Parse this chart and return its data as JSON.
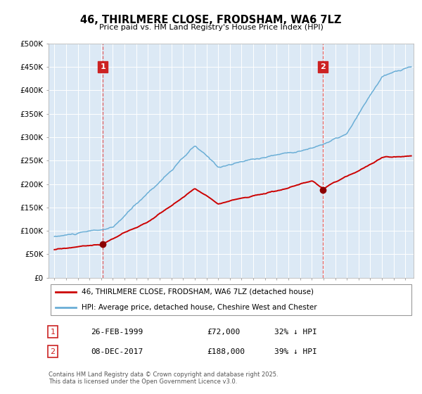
{
  "title": "46, THIRLMERE CLOSE, FRODSHAM, WA6 7LZ",
  "subtitle": "Price paid vs. HM Land Registry's House Price Index (HPI)",
  "background_color": "#ffffff",
  "plot_bg_color": "#dce9f5",
  "ylim": [
    0,
    500000
  ],
  "yticks": [
    0,
    50000,
    100000,
    150000,
    200000,
    250000,
    300000,
    350000,
    400000,
    450000,
    500000
  ],
  "ytick_labels": [
    "£0",
    "£50K",
    "£100K",
    "£150K",
    "£200K",
    "£250K",
    "£300K",
    "£350K",
    "£400K",
    "£450K",
    "£500K"
  ],
  "hpi_color": "#6aaed6",
  "price_color": "#cc0000",
  "marker_color": "#8b0000",
  "vline_color": "#e06060",
  "annotation_box_color": "#cc2222",
  "transaction1_date": 1999.15,
  "transaction1_price": 72000,
  "transaction1_label": "1",
  "transaction2_date": 2017.93,
  "transaction2_price": 188000,
  "transaction2_label": "2",
  "legend_label_price": "46, THIRLMERE CLOSE, FRODSHAM, WA6 7LZ (detached house)",
  "legend_label_hpi": "HPI: Average price, detached house, Cheshire West and Chester",
  "footer_line1": "Contains HM Land Registry data © Crown copyright and database right 2025.",
  "footer_line2": "This data is licensed under the Open Government Licence v3.0.",
  "table_row1": [
    "1",
    "26-FEB-1999",
    "£72,000",
    "32% ↓ HPI"
  ],
  "table_row2": [
    "2",
    "08-DEC-2017",
    "£188,000",
    "39% ↓ HPI"
  ]
}
